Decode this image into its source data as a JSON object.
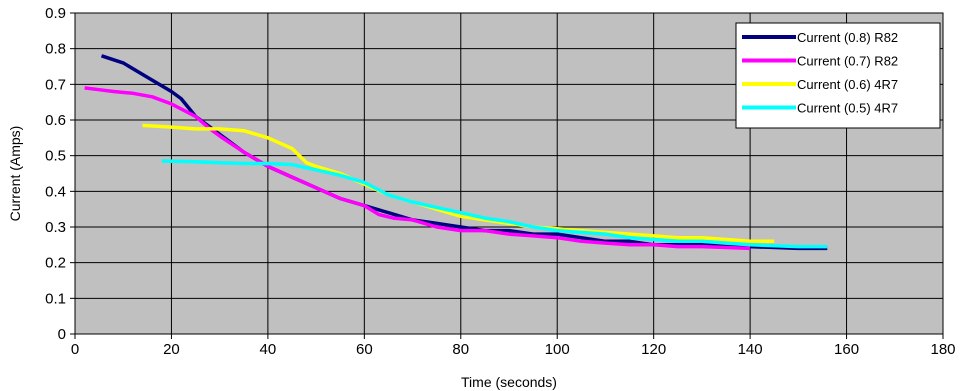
{
  "chart_data": {
    "type": "line",
    "title": "",
    "xlabel": "Time (seconds)",
    "ylabel": "Current (Amps)",
    "xlim": [
      0,
      180
    ],
    "ylim": [
      0,
      0.9
    ],
    "x_ticks": [
      0,
      20,
      40,
      60,
      80,
      100,
      120,
      140,
      160,
      180
    ],
    "y_ticks": [
      0,
      0.1,
      0.2,
      0.3,
      0.4,
      0.5,
      0.6,
      0.7,
      0.8,
      0.9
    ],
    "x_tick_labels": [
      "0",
      "20",
      "40",
      "60",
      "80",
      "100",
      "120",
      "140",
      "160",
      "180"
    ],
    "y_tick_labels": [
      "0",
      "0.1",
      "0.2",
      "0.3",
      "0.4",
      "0.5",
      "0.6",
      "0.7",
      "0.8",
      "0.9"
    ],
    "grid": true,
    "plot_background": "#c0c0c0",
    "legend_position": "top-right",
    "series": [
      {
        "name": "Current (0.8) R82",
        "color": "#000080",
        "points": [
          [
            5.5,
            0.78
          ],
          [
            10,
            0.76
          ],
          [
            15,
            0.72
          ],
          [
            20,
            0.68
          ],
          [
            22,
            0.66
          ],
          [
            25,
            0.61
          ],
          [
            30,
            0.56
          ],
          [
            35,
            0.51
          ],
          [
            40,
            0.47
          ],
          [
            45,
            0.44
          ],
          [
            50,
            0.41
          ],
          [
            55,
            0.38
          ],
          [
            60,
            0.36
          ],
          [
            65,
            0.34
          ],
          [
            70,
            0.32
          ],
          [
            75,
            0.31
          ],
          [
            80,
            0.3
          ],
          [
            85,
            0.29
          ],
          [
            90,
            0.29
          ],
          [
            95,
            0.28
          ],
          [
            100,
            0.28
          ],
          [
            105,
            0.27
          ],
          [
            110,
            0.26
          ],
          [
            115,
            0.26
          ],
          [
            120,
            0.25
          ],
          [
            125,
            0.25
          ],
          [
            130,
            0.25
          ],
          [
            140,
            0.245
          ],
          [
            150,
            0.24
          ],
          [
            156,
            0.24
          ]
        ]
      },
      {
        "name": "Current (0.7) R82",
        "color": "#ff00ff",
        "points": [
          [
            2,
            0.69
          ],
          [
            5,
            0.685
          ],
          [
            8,
            0.68
          ],
          [
            12,
            0.675
          ],
          [
            16,
            0.665
          ],
          [
            20,
            0.645
          ],
          [
            25,
            0.61
          ],
          [
            28,
            0.575
          ],
          [
            30,
            0.555
          ],
          [
            35,
            0.51
          ],
          [
            40,
            0.47
          ],
          [
            45,
            0.44
          ],
          [
            50,
            0.41
          ],
          [
            55,
            0.38
          ],
          [
            60,
            0.36
          ],
          [
            63,
            0.335
          ],
          [
            66,
            0.325
          ],
          [
            70,
            0.32
          ],
          [
            75,
            0.3
          ],
          [
            80,
            0.29
          ],
          [
            85,
            0.29
          ],
          [
            90,
            0.28
          ],
          [
            95,
            0.275
          ],
          [
            100,
            0.27
          ],
          [
            105,
            0.26
          ],
          [
            110,
            0.255
          ],
          [
            115,
            0.25
          ],
          [
            120,
            0.25
          ],
          [
            125,
            0.245
          ],
          [
            130,
            0.245
          ],
          [
            140,
            0.24
          ]
        ]
      },
      {
        "name": "Current (0.6) 4R7",
        "color": "#ffff00",
        "points": [
          [
            14,
            0.585
          ],
          [
            20,
            0.58
          ],
          [
            25,
            0.575
          ],
          [
            30,
            0.575
          ],
          [
            35,
            0.57
          ],
          [
            40,
            0.55
          ],
          [
            45,
            0.52
          ],
          [
            48,
            0.48
          ],
          [
            50,
            0.47
          ],
          [
            55,
            0.45
          ],
          [
            60,
            0.42
          ],
          [
            65,
            0.39
          ],
          [
            70,
            0.37
          ],
          [
            75,
            0.35
          ],
          [
            80,
            0.33
          ],
          [
            85,
            0.32
          ],
          [
            90,
            0.31
          ],
          [
            95,
            0.3
          ],
          [
            100,
            0.295
          ],
          [
            105,
            0.29
          ],
          [
            110,
            0.285
          ],
          [
            115,
            0.28
          ],
          [
            120,
            0.275
          ],
          [
            125,
            0.27
          ],
          [
            130,
            0.27
          ],
          [
            135,
            0.265
          ],
          [
            140,
            0.26
          ],
          [
            145,
            0.26
          ]
        ]
      },
      {
        "name": "Current (0.5) 4R7",
        "color": "#00ffff",
        "points": [
          [
            18,
            0.485
          ],
          [
            25,
            0.483
          ],
          [
            30,
            0.48
          ],
          [
            35,
            0.478
          ],
          [
            40,
            0.478
          ],
          [
            45,
            0.475
          ],
          [
            50,
            0.46
          ],
          [
            55,
            0.445
          ],
          [
            60,
            0.425
          ],
          [
            65,
            0.39
          ],
          [
            70,
            0.37
          ],
          [
            75,
            0.355
          ],
          [
            80,
            0.34
          ],
          [
            85,
            0.325
          ],
          [
            90,
            0.315
          ],
          [
            95,
            0.3
          ],
          [
            100,
            0.29
          ],
          [
            105,
            0.285
          ],
          [
            110,
            0.28
          ],
          [
            115,
            0.27
          ],
          [
            120,
            0.265
          ],
          [
            125,
            0.26
          ],
          [
            130,
            0.26
          ],
          [
            135,
            0.255
          ],
          [
            140,
            0.25
          ],
          [
            150,
            0.245
          ],
          [
            156,
            0.245
          ]
        ]
      }
    ]
  }
}
